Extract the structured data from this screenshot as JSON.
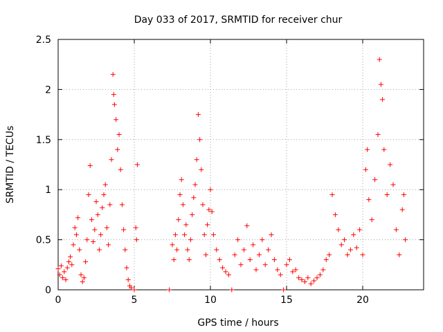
{
  "chart_data": {
    "type": "scatter",
    "title": "Day 033 of 2017, SRMTID for receiver chur",
    "xlabel": "GPS time / hours",
    "ylabel": "SRMTID / TECUs",
    "xlim": [
      0,
      24
    ],
    "ylim": [
      0,
      2.5
    ],
    "xticks": [
      0,
      5,
      10,
      15,
      20
    ],
    "yticks": [
      0,
      0.5,
      1,
      1.5,
      2,
      2.5
    ],
    "xtick_labels": [
      "0",
      "5",
      "10",
      "15",
      "20"
    ],
    "ytick_labels": [
      "0",
      "0.5",
      "1",
      "1.5",
      "2",
      "2.5"
    ],
    "grid": true,
    "marker": "+",
    "marker_color": "#ff0000",
    "series": [
      {
        "name": "SRMTID",
        "points": [
          [
            0.0,
            0.21
          ],
          [
            0.1,
            0.15
          ],
          [
            0.2,
            0.24
          ],
          [
            0.3,
            0.12
          ],
          [
            0.4,
            0.18
          ],
          [
            0.5,
            0.1
          ],
          [
            0.6,
            0.22
          ],
          [
            0.7,
            0.28
          ],
          [
            0.8,
            0.33
          ],
          [
            0.9,
            0.25
          ],
          [
            1.0,
            0.45
          ],
          [
            1.1,
            0.62
          ],
          [
            1.2,
            0.55
          ],
          [
            1.3,
            0.72
          ],
          [
            1.4,
            0.4
          ],
          [
            1.5,
            0.15
          ],
          [
            1.6,
            0.08
          ],
          [
            1.7,
            0.12
          ],
          [
            1.8,
            0.28
          ],
          [
            1.9,
            0.5
          ],
          [
            2.0,
            0.95
          ],
          [
            2.1,
            1.24
          ],
          [
            2.2,
            0.7
          ],
          [
            2.3,
            0.48
          ],
          [
            2.4,
            0.6
          ],
          [
            2.5,
            0.88
          ],
          [
            2.6,
            0.75
          ],
          [
            2.7,
            0.4
          ],
          [
            2.8,
            0.55
          ],
          [
            2.9,
            0.82
          ],
          [
            3.0,
            0.95
          ],
          [
            3.1,
            1.05
          ],
          [
            3.2,
            0.62
          ],
          [
            3.3,
            0.45
          ],
          [
            3.4,
            0.85
          ],
          [
            3.5,
            1.3
          ],
          [
            3.6,
            2.15
          ],
          [
            3.65,
            1.95
          ],
          [
            3.7,
            1.85
          ],
          [
            3.8,
            1.7
          ],
          [
            3.9,
            1.4
          ],
          [
            4.0,
            1.55
          ],
          [
            4.1,
            1.2
          ],
          [
            4.2,
            0.85
          ],
          [
            4.3,
            0.6
          ],
          [
            4.4,
            0.4
          ],
          [
            4.5,
            0.22
          ],
          [
            4.6,
            0.1
          ],
          [
            4.7,
            0.04
          ],
          [
            4.8,
            0.02
          ],
          [
            5.0,
            0.0
          ],
          [
            5.1,
            0.62
          ],
          [
            5.15,
            0.5
          ],
          [
            5.2,
            1.25
          ],
          [
            7.3,
            0.0
          ],
          [
            7.5,
            0.45
          ],
          [
            7.6,
            0.3
          ],
          [
            7.7,
            0.55
          ],
          [
            7.8,
            0.4
          ],
          [
            7.9,
            0.7
          ],
          [
            8.0,
            0.95
          ],
          [
            8.1,
            1.1
          ],
          [
            8.2,
            0.85
          ],
          [
            8.3,
            0.55
          ],
          [
            8.4,
            0.65
          ],
          [
            8.5,
            0.4
          ],
          [
            8.6,
            0.3
          ],
          [
            8.7,
            0.5
          ],
          [
            8.8,
            0.75
          ],
          [
            8.9,
            0.92
          ],
          [
            9.0,
            1.05
          ],
          [
            9.1,
            1.3
          ],
          [
            9.2,
            1.75
          ],
          [
            9.3,
            1.5
          ],
          [
            9.4,
            1.2
          ],
          [
            9.5,
            0.85
          ],
          [
            9.6,
            0.55
          ],
          [
            9.7,
            0.35
          ],
          [
            9.8,
            0.65
          ],
          [
            9.9,
            0.8
          ],
          [
            10.0,
            1.0
          ],
          [
            10.1,
            0.78
          ],
          [
            10.2,
            0.55
          ],
          [
            10.4,
            0.4
          ],
          [
            10.6,
            0.3
          ],
          [
            10.8,
            0.22
          ],
          [
            11.0,
            0.18
          ],
          [
            11.2,
            0.15
          ],
          [
            11.4,
            0.0
          ],
          [
            11.6,
            0.35
          ],
          [
            11.8,
            0.5
          ],
          [
            12.0,
            0.25
          ],
          [
            12.2,
            0.4
          ],
          [
            12.4,
            0.64
          ],
          [
            12.6,
            0.3
          ],
          [
            12.8,
            0.45
          ],
          [
            13.0,
            0.2
          ],
          [
            13.2,
            0.35
          ],
          [
            13.4,
            0.5
          ],
          [
            13.6,
            0.25
          ],
          [
            13.8,
            0.4
          ],
          [
            14.0,
            0.55
          ],
          [
            14.2,
            0.3
          ],
          [
            14.4,
            0.2
          ],
          [
            14.6,
            0.15
          ],
          [
            14.8,
            0.0
          ],
          [
            15.0,
            0.25
          ],
          [
            15.2,
            0.3
          ],
          [
            15.4,
            0.18
          ],
          [
            15.6,
            0.2
          ],
          [
            15.8,
            0.12
          ],
          [
            16.0,
            0.1
          ],
          [
            16.2,
            0.08
          ],
          [
            16.4,
            0.12
          ],
          [
            16.6,
            0.06
          ],
          [
            16.8,
            0.09
          ],
          [
            17.0,
            0.12
          ],
          [
            17.2,
            0.15
          ],
          [
            17.4,
            0.2
          ],
          [
            17.6,
            0.3
          ],
          [
            17.8,
            0.35
          ],
          [
            18.0,
            0.95
          ],
          [
            18.2,
            0.75
          ],
          [
            18.4,
            0.6
          ],
          [
            18.6,
            0.45
          ],
          [
            18.8,
            0.5
          ],
          [
            19.0,
            0.35
          ],
          [
            19.2,
            0.4
          ],
          [
            19.4,
            0.55
          ],
          [
            19.6,
            0.42
          ],
          [
            19.8,
            0.6
          ],
          [
            20.0,
            0.35
          ],
          [
            20.2,
            1.2
          ],
          [
            20.3,
            1.4
          ],
          [
            20.4,
            0.9
          ],
          [
            20.6,
            0.7
          ],
          [
            20.8,
            1.1
          ],
          [
            21.0,
            1.55
          ],
          [
            21.1,
            2.3
          ],
          [
            21.2,
            2.05
          ],
          [
            21.3,
            1.9
          ],
          [
            21.4,
            1.4
          ],
          [
            21.6,
            0.95
          ],
          [
            21.8,
            1.25
          ],
          [
            22.0,
            1.05
          ],
          [
            22.2,
            0.6
          ],
          [
            22.4,
            0.35
          ],
          [
            22.6,
            0.8
          ],
          [
            22.7,
            0.95
          ],
          [
            22.8,
            0.5
          ]
        ]
      }
    ]
  }
}
